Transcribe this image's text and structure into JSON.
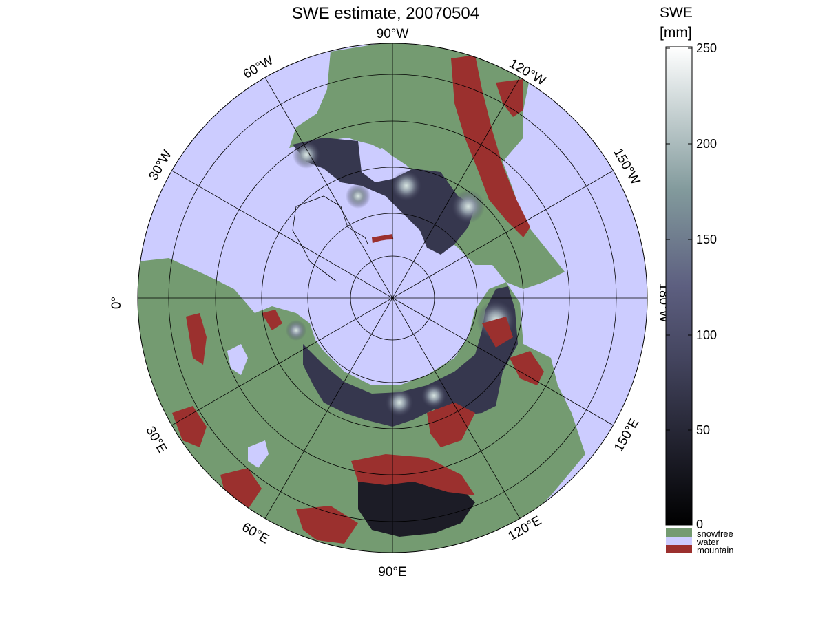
{
  "title": "SWE estimate, 20070504",
  "colorbar": {
    "title_line1": "SWE",
    "title_line2": "[mm]",
    "ticks": [
      "250",
      "200",
      "150",
      "100",
      "50",
      "0"
    ],
    "range": [
      0,
      250
    ],
    "colors": {
      "low": "#000000",
      "mid": "#54567a",
      "high": "#ffffff"
    }
  },
  "categories": [
    {
      "label": "snowfree",
      "color": "#749b71"
    },
    {
      "label": "water",
      "color": "#ccccff"
    },
    {
      "label": "mountain",
      "color": "#9b302e"
    }
  ],
  "map": {
    "projection": "north-polar-stereographic",
    "longitude_labels": {
      "lon_90w": "90°W",
      "lon_120w": "120°W",
      "lon_150w": "150°W",
      "lon_180w": "180°W",
      "lon_150e": "150°E",
      "lon_120e": "120°E",
      "lon_90e": "90°E",
      "lon_60e": "60°E",
      "lon_30e": "30°E",
      "lon_0": "0°",
      "lon_30w": "30°W",
      "lon_60w": "60°W"
    },
    "colors": {
      "grid": "#000000",
      "coast": "#000000"
    }
  }
}
